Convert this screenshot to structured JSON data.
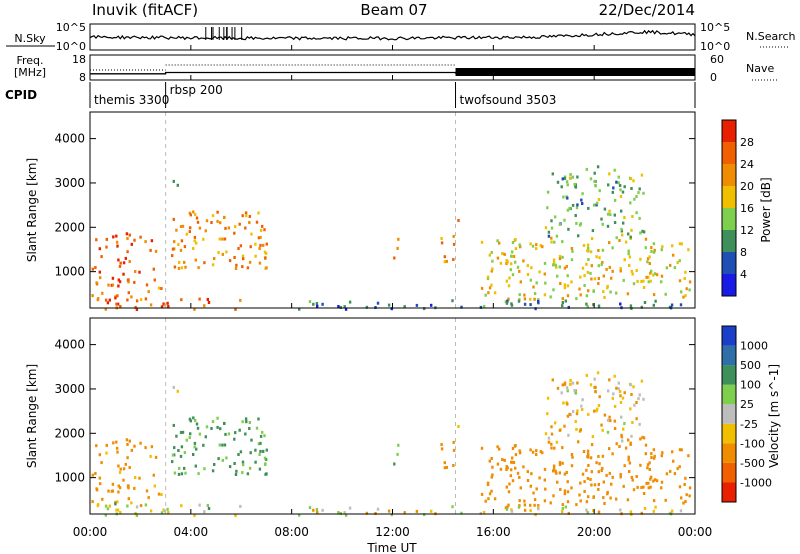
{
  "header": {
    "radar": "Inuvik (fitACF)",
    "beam": "Beam 07",
    "date": "22/Dec/2014"
  },
  "noise_panel": {
    "left_label": "N.Sky",
    "right_label": "N.Search",
    "left_ticks": [
      "10^5",
      "10^0"
    ],
    "right_ticks": [
      "10^5",
      "10^0"
    ]
  },
  "freq_panel": {
    "left_label_1": "Freq.",
    "left_label_2": "[MHz]",
    "right_label": "Nave",
    "left_ticks": [
      "18",
      "8"
    ],
    "right_ticks": [
      "60",
      "0"
    ]
  },
  "cpid": {
    "label": "CPID",
    "modes": [
      {
        "name": "themis 3300",
        "start_hour": 0
      },
      {
        "name": "rbsp 200",
        "start_hour": 3
      },
      {
        "name": "twofsound 3503",
        "start_hour": 14.5
      }
    ]
  },
  "power_panel": {
    "ylabel": "Slant Range [km]",
    "yticks": [
      "4000",
      "3000",
      "2000",
      "1000"
    ],
    "colorbar_label": "Power [dB]",
    "colorbar_ticks": [
      "28",
      "24",
      "20",
      "16",
      "12",
      "8",
      "4"
    ],
    "colors": [
      "#1a1ae6",
      "#1f4fb4",
      "#3f8f5a",
      "#7fcf4f",
      "#f0c000",
      "#f08c00",
      "#f06000",
      "#e82000"
    ]
  },
  "velocity_panel": {
    "ylabel": "Slant Range [km]",
    "yticks": [
      "4000",
      "3000",
      "2000",
      "1000"
    ],
    "colorbar_label": "Velocity [m s^-1]",
    "colorbar_ticks": [
      "1000",
      "500",
      "100",
      "25",
      "-25",
      "-100",
      "-500",
      "-1000"
    ],
    "colors": [
      "#1a3fc8",
      "#2e6fa8",
      "#3f8f5a",
      "#7fcf4f",
      "#bdbdbd",
      "#f0c000",
      "#f08c00",
      "#f06000",
      "#e82000"
    ]
  },
  "x_axis": {
    "title": "Time UT",
    "ticks": [
      "00:00",
      "04:00",
      "08:00",
      "12:00",
      "16:00",
      "20:00",
      "00:00"
    ]
  },
  "chart_data": {
    "type": "heatmap",
    "x_range_hours": [
      0,
      24
    ],
    "y_range_km": [
      180,
      4600
    ],
    "power_scale_db": [
      0,
      30
    ],
    "velocity_scale_ms": [
      -1000,
      1000
    ],
    "echo_regions": [
      {
        "t0": 0.0,
        "t1": 2.6,
        "r0": 700,
        "r1": 1900,
        "power": 27,
        "velocity": -200
      },
      {
        "t0": 0.0,
        "t1": 2.8,
        "r0": 400,
        "r1": 700,
        "power": 22,
        "velocity": -80
      },
      {
        "t0": 0.5,
        "t1": 6.0,
        "r0": 180,
        "r1": 450,
        "power": 26,
        "velocity": 20
      },
      {
        "t0": 3.2,
        "t1": 7.0,
        "r0": 1100,
        "r1": 2400,
        "power": 23,
        "velocity": 150
      },
      {
        "t0": 3.2,
        "t1": 3.6,
        "r0": 2900,
        "r1": 3500,
        "power": 14,
        "velocity": -100
      },
      {
        "t0": 12.0,
        "t1": 12.3,
        "r0": 1300,
        "r1": 2000,
        "power": 24,
        "velocity": 120
      },
      {
        "t0": 13.9,
        "t1": 14.6,
        "r0": 1200,
        "r1": 2200,
        "power": 22,
        "velocity": -200
      },
      {
        "t0": 15.5,
        "t1": 23.8,
        "r0": 400,
        "r1": 1800,
        "power": 18,
        "velocity": -300
      },
      {
        "t0": 18.0,
        "t1": 22.0,
        "r0": 1800,
        "r1": 3400,
        "power": 12,
        "velocity": -80
      },
      {
        "t0": 8.0,
        "t1": 23.5,
        "r0": 180,
        "r1": 380,
        "power": 8,
        "velocity": -50
      }
    ],
    "noise_search": {
      "x": [
        0,
        6,
        12,
        18,
        22,
        24
      ],
      "level": [
        0.5,
        0.45,
        0.45,
        0.5,
        0.7,
        0.6
      ]
    },
    "frequency_mhz": {
      "x": [
        0,
        3,
        3,
        14.5,
        14.5,
        24
      ],
      "y": [
        10.5,
        10.5,
        11.0,
        11.0,
        10.8,
        10.8
      ]
    }
  }
}
